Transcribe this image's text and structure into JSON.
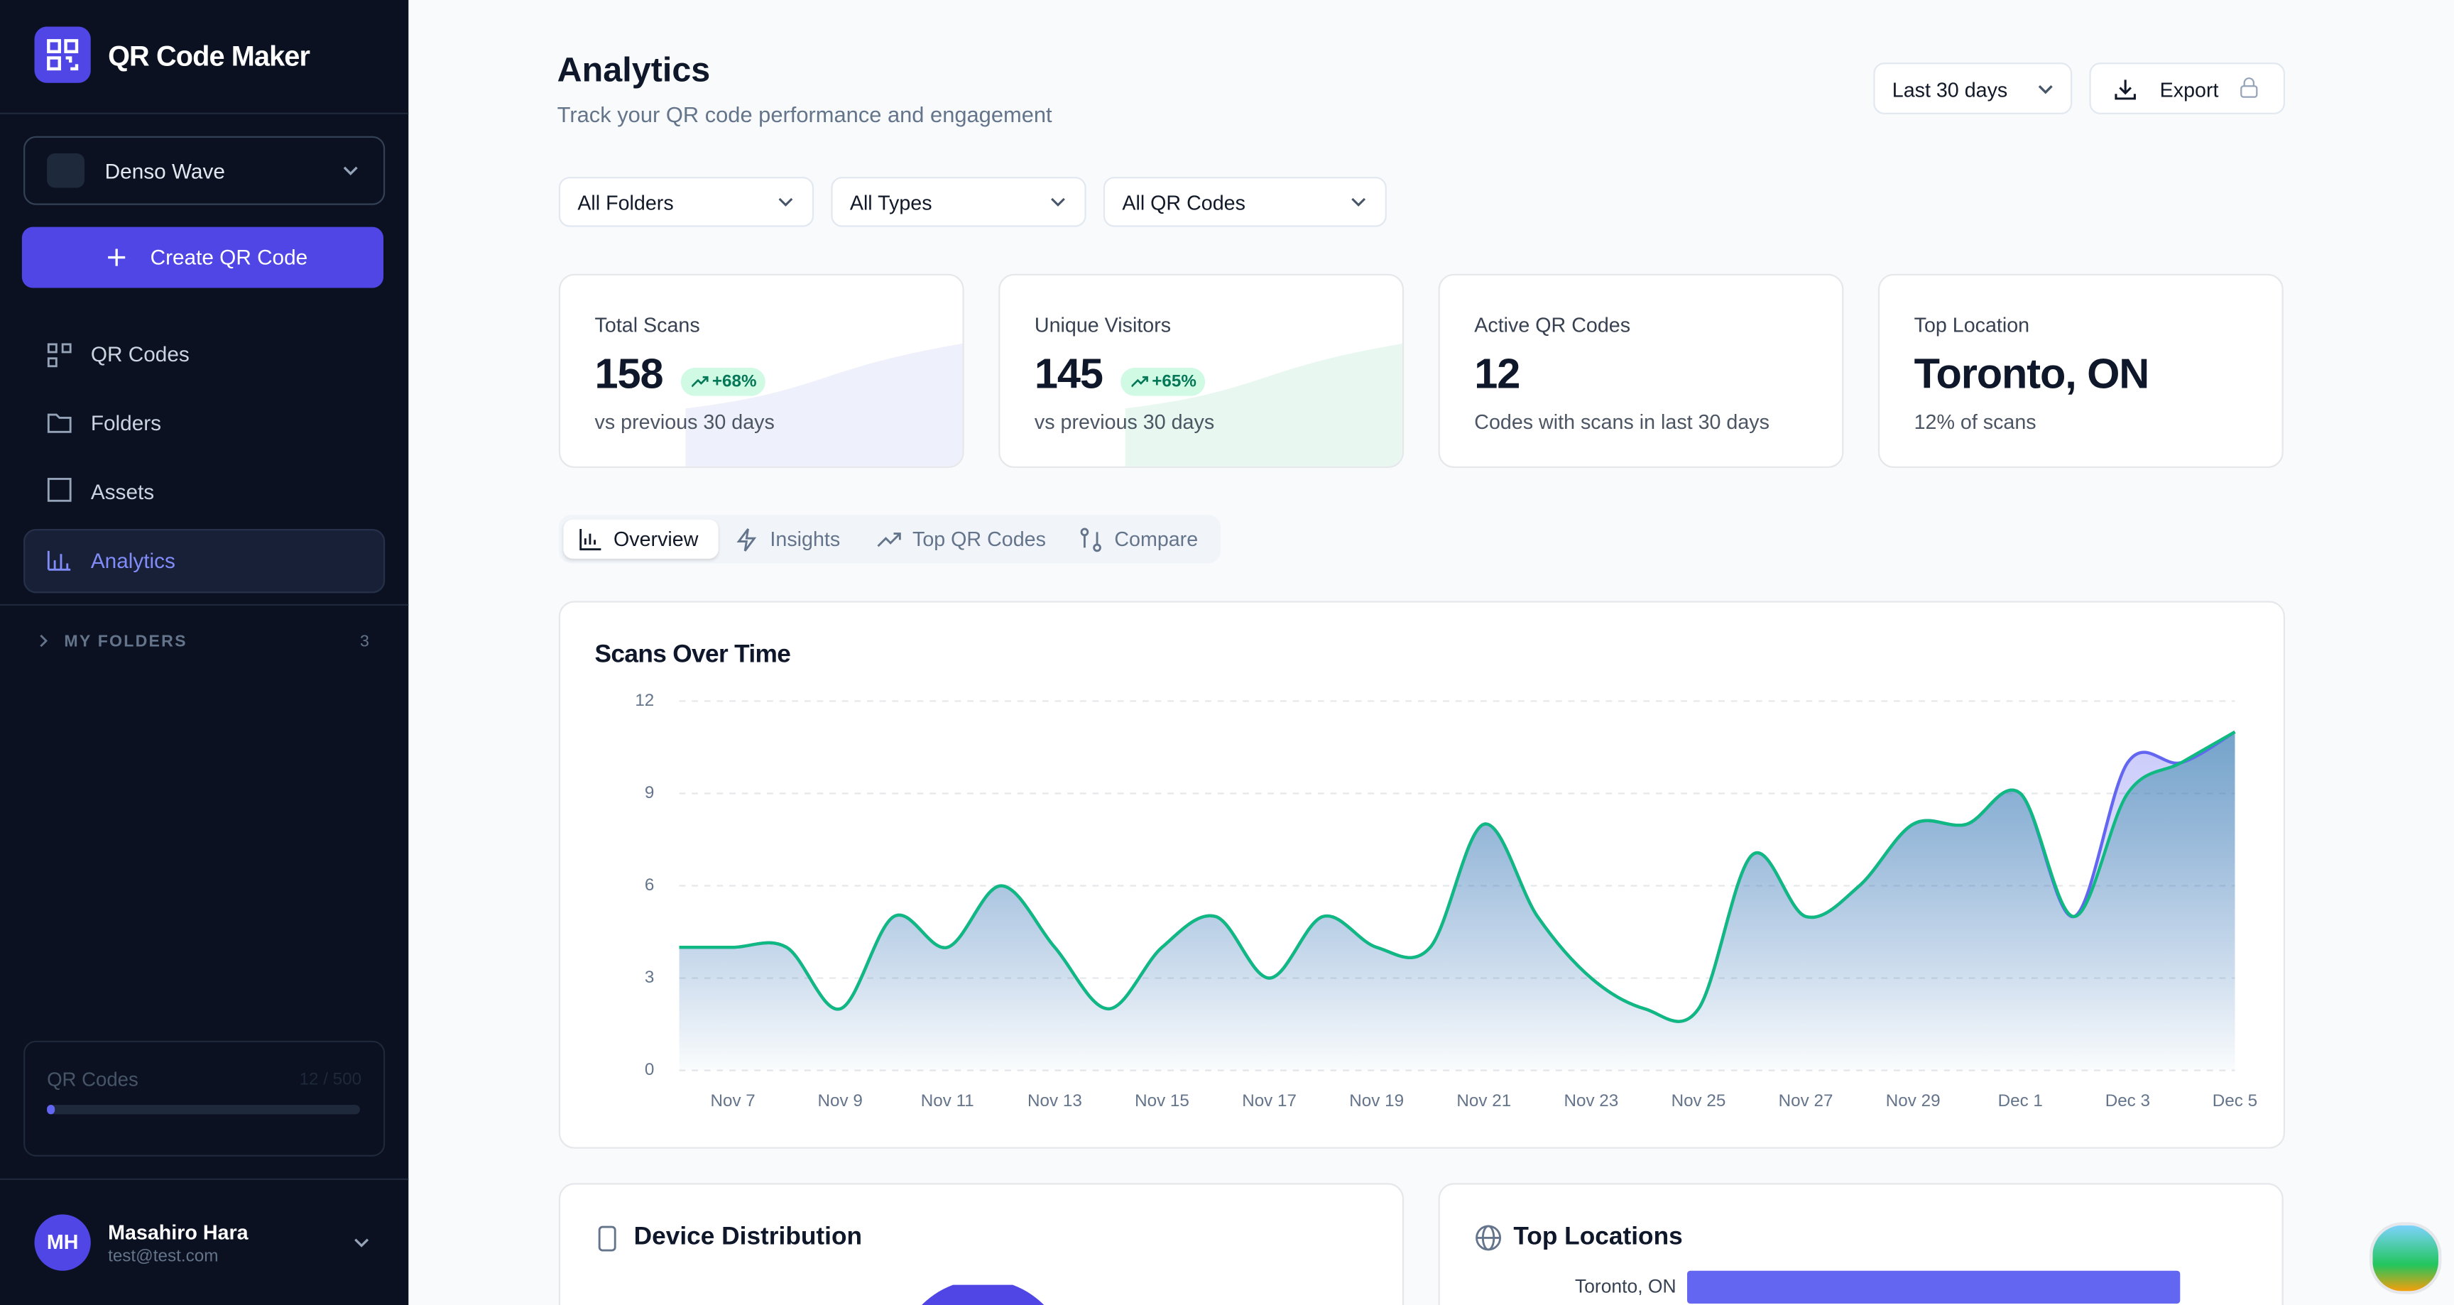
{
  "sidebar": {
    "app_name": "QR Code Maker",
    "workspace": "Denso Wave",
    "create_button": "Create QR Code",
    "nav": [
      "QR Codes",
      "Folders",
      "Assets",
      "Analytics"
    ],
    "folders_label": "MY FOLDERS",
    "folders_count": 3,
    "quota": {
      "label": "QR Codes",
      "usage": "12 / 500"
    },
    "user": {
      "initials": "MH",
      "name": "Masahiro Hara",
      "email": "test@test.com"
    }
  },
  "header": {
    "title": "Analytics",
    "subtitle": "Track your QR code performance and engagement",
    "date_range": "Last 30 days",
    "export": "Export"
  },
  "filters": [
    "All Folders",
    "All Types",
    "All QR Codes"
  ],
  "stats": [
    {
      "label": "Total Scans",
      "value": 158,
      "change": "+68%",
      "note": "vs previous 30 days"
    },
    {
      "label": "Unique Visitors",
      "value": 145,
      "change": "+65%",
      "note": "vs previous 30 days"
    },
    {
      "label": "Active QR Codes",
      "value": 12,
      "note": "Codes with scans in last 30 days"
    },
    {
      "label": "Top Location",
      "value": "Toronto, ON",
      "note": "12% of scans"
    }
  ],
  "tabs": [
    "Overview",
    "Insights",
    "Top QR Codes",
    "Compare"
  ],
  "chart_data": {
    "type": "line",
    "title": "Scans Over Time",
    "categories": [
      null,
      "Nov 7",
      null,
      "Nov 9",
      null,
      "Nov 11",
      null,
      "Nov 13",
      null,
      "Nov 15",
      null,
      "Nov 17",
      null,
      "Nov 19",
      null,
      "Nov 21",
      null,
      "Nov 23",
      null,
      "Nov 25",
      null,
      "Nov 27",
      null,
      "Nov 29",
      null,
      "Dec 1",
      null,
      "Dec 3",
      null,
      "Dec 5"
    ],
    "series": [
      {
        "color": "#6366f1",
        "values": [
          4,
          4,
          4,
          2,
          5,
          4,
          6,
          4,
          2,
          4,
          5,
          3,
          5,
          4,
          4,
          8,
          5,
          3,
          2,
          2,
          7,
          5,
          6,
          8,
          8,
          9,
          5,
          10,
          10,
          11
        ]
      },
      {
        "color": "#10b981",
        "values": [
          4,
          4,
          4,
          2,
          5,
          4,
          6,
          4,
          2,
          4,
          5,
          3,
          5,
          4,
          4,
          8,
          5,
          3,
          2,
          2,
          7,
          5,
          6,
          8,
          8,
          9,
          5,
          9,
          10,
          11
        ]
      }
    ],
    "ylim": [
      0,
      12
    ],
    "yticks": [
      0,
      3,
      6,
      9,
      12
    ],
    "grid": true
  },
  "device": {
    "title": "Device Distribution"
  },
  "locations": {
    "title": "Top Locations",
    "labels": [
      "Toronto, ON"
    ]
  }
}
